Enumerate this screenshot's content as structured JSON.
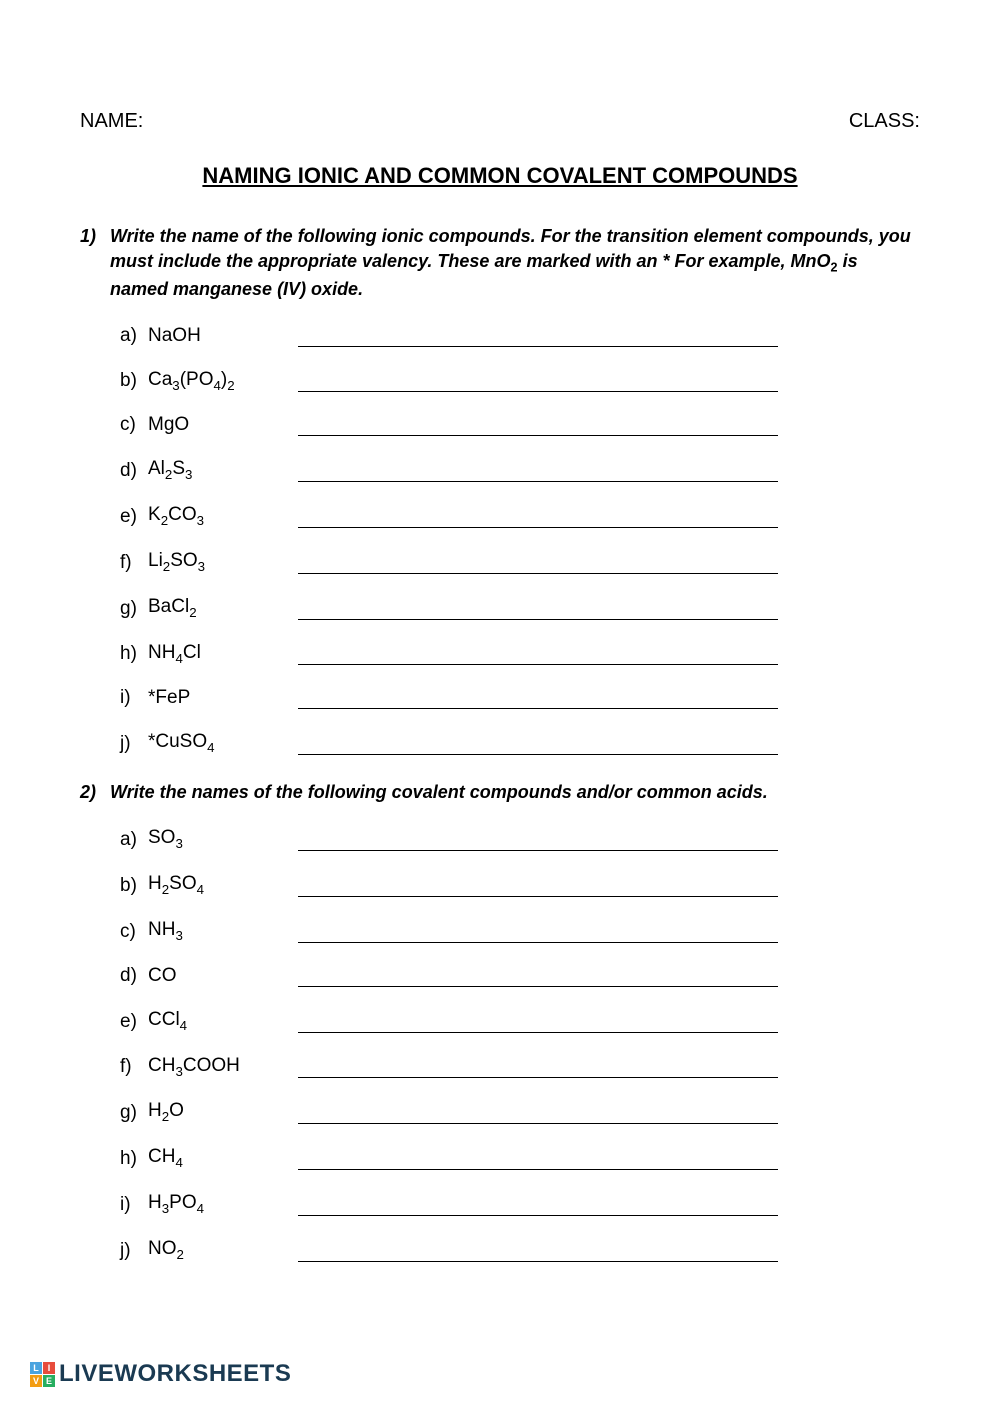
{
  "header": {
    "name_label": "NAME:",
    "class_label": "CLASS:"
  },
  "title": "NAMING IONIC AND COMMON COVALENT COMPOUNDS",
  "questions": [
    {
      "number": "1)",
      "text_html": "Write the name of the following ionic compounds. For the transition element compounds, you must include the appropriate valency. These are marked with an * For example, MnO<sub>2</sub> is named manganese (IV) oxide.",
      "items": [
        {
          "letter": "a)",
          "formula_html": "NaOH"
        },
        {
          "letter": "b)",
          "formula_html": "Ca<sub>3</sub>(PO<sub>4</sub>)<sub>2</sub>"
        },
        {
          "letter": "c)",
          "formula_html": "MgO"
        },
        {
          "letter": "d)",
          "formula_html": "Al<sub>2</sub>S<sub>3</sub>"
        },
        {
          "letter": "e)",
          "formula_html": "K<sub>2</sub>CO<sub>3</sub>"
        },
        {
          "letter": "f)",
          "formula_html": "Li<sub>2</sub>SO<sub>3</sub>"
        },
        {
          "letter": "g)",
          "formula_html": "BaCl<sub>2</sub>"
        },
        {
          "letter": "h)",
          "formula_html": "NH<sub>4</sub>Cl"
        },
        {
          "letter": "i)",
          "formula_html": "*FeP"
        },
        {
          "letter": "j)",
          "formula_html": "*CuSO<sub>4</sub>"
        }
      ]
    },
    {
      "number": "2)",
      "text_html": "Write the names of the following covalent compounds and/or common acids.",
      "items": [
        {
          "letter": "a)",
          "formula_html": "SO<sub>3</sub>"
        },
        {
          "letter": "b)",
          "formula_html": "H<sub>2</sub>SO<sub>4</sub>"
        },
        {
          "letter": "c)",
          "formula_html": "NH<sub>3</sub>"
        },
        {
          "letter": "d)",
          "formula_html": "CO"
        },
        {
          "letter": "e)",
          "formula_html": "CCl<sub>4</sub>"
        },
        {
          "letter": "f)",
          "formula_html": "CH<sub>3</sub>COOH"
        },
        {
          "letter": "g)",
          "formula_html": "H<sub>2</sub>O"
        },
        {
          "letter": "h)",
          "formula_html": "CH<sub>4</sub>"
        },
        {
          "letter": "i)",
          "formula_html": "H<sub>3</sub>PO<sub>4</sub>"
        },
        {
          "letter": "j)",
          "formula_html": "NO<sub>2</sub>"
        }
      ]
    }
  ],
  "footer": {
    "logo_cells": [
      {
        "char": "L",
        "bg": "#4aa3df"
      },
      {
        "char": "I",
        "bg": "#e74c3c"
      },
      {
        "char": "V",
        "bg": "#f39c12"
      },
      {
        "char": "E",
        "bg": "#27ae60"
      }
    ],
    "brand": "LIVEWORKSHEETS"
  },
  "colors": {
    "text": "#000000",
    "background": "#ffffff",
    "logo_text": "#1a3a52"
  }
}
